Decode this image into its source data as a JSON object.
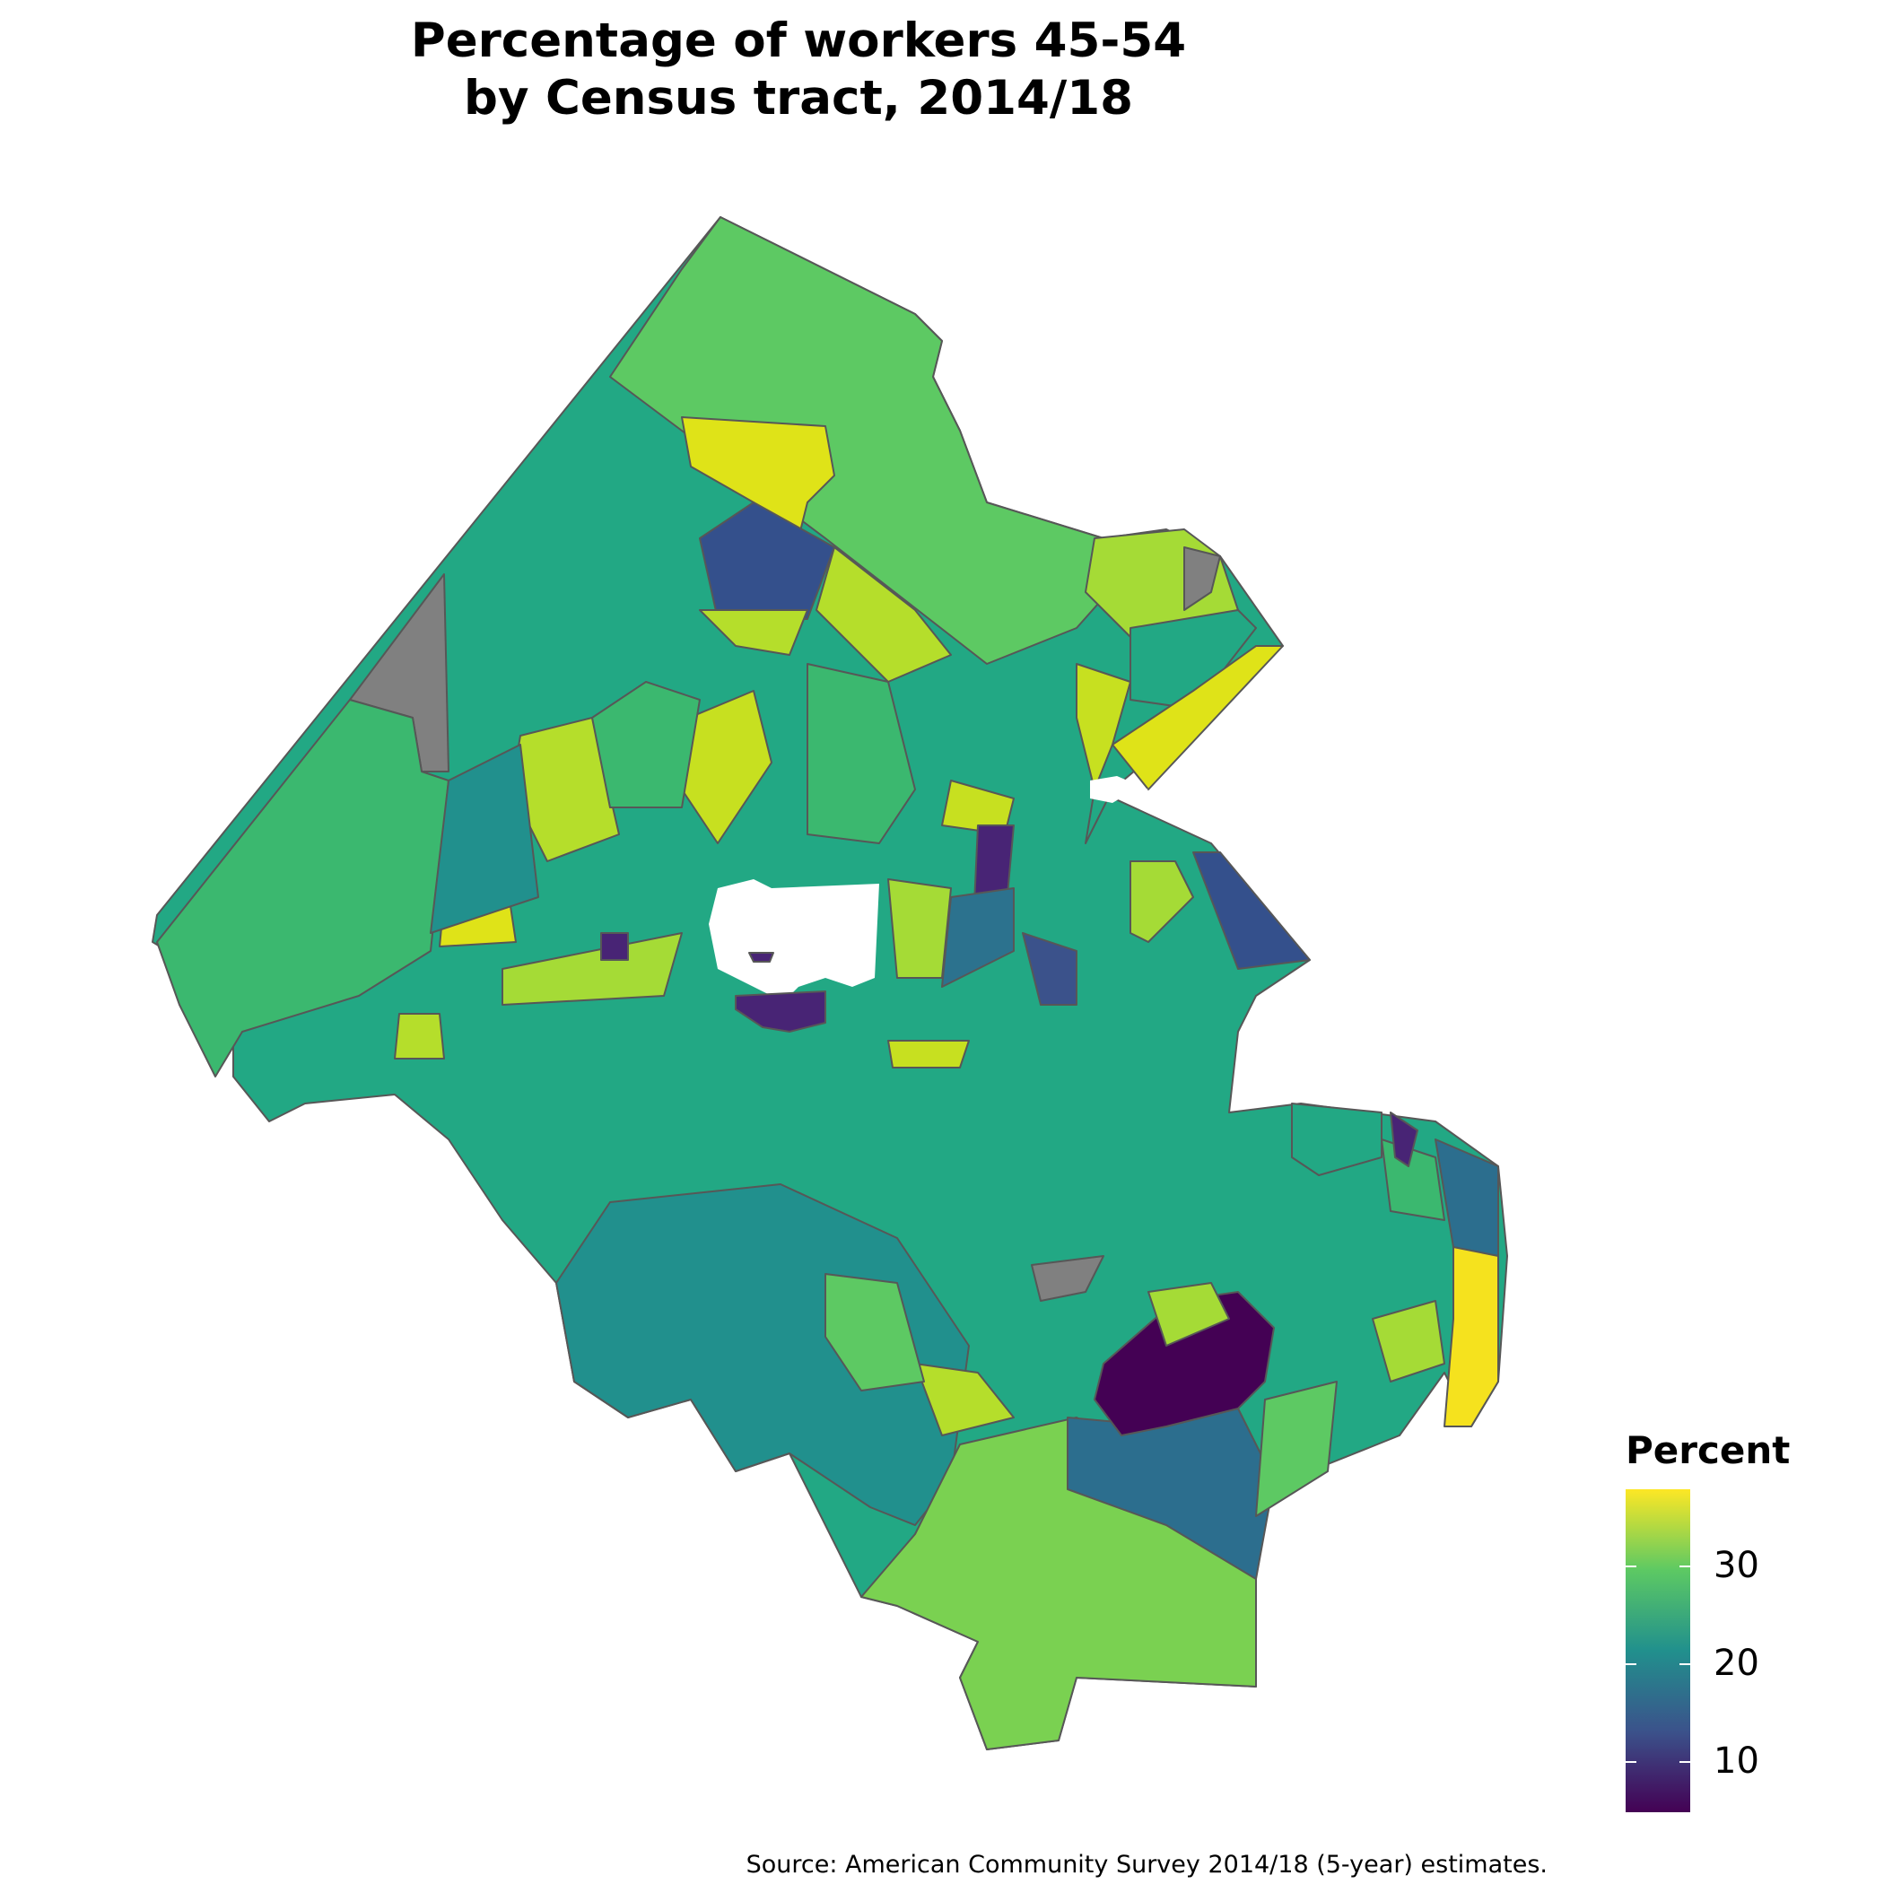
{
  "title": {
    "line1": "Percentage of workers 45-54",
    "line2": "by Census tract, 2014/18"
  },
  "legend": {
    "title": "Percent",
    "ticks": [
      {
        "value": 30,
        "label": "30"
      },
      {
        "value": 20,
        "label": "20"
      },
      {
        "value": 10,
        "label": "10"
      }
    ],
    "range": [
      4,
      37
    ],
    "colors": [
      "#440154",
      "#3b528b",
      "#21908d",
      "#5dc963",
      "#fde725"
    ]
  },
  "missing_color": "#808080",
  "caption": "Source: American Community Survey 2014/18 (5-year) estimates."
}
